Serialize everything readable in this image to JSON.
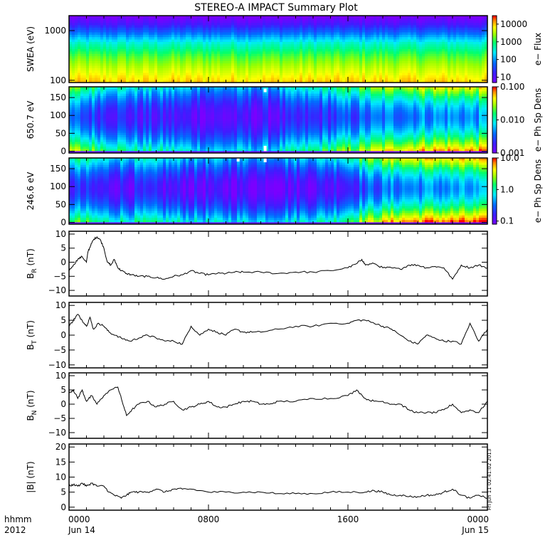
{
  "title": "STEREO-A IMPACT Summary Plot",
  "x_axis": {
    "corner_labels": [
      "hhmm",
      "2012"
    ],
    "ticks": [
      {
        "hour": 0,
        "time": "0000",
        "date": "Jun 14"
      },
      {
        "hour": 8,
        "time": "0800",
        "date": ""
      },
      {
        "hour": 16,
        "time": "1600",
        "date": ""
      },
      {
        "hour": 24,
        "time": "0000",
        "date": "Jun 15"
      }
    ],
    "range_hours": [
      0,
      24
    ],
    "minor_tick_step_hours": 1
  },
  "stamp_text": "Fri Jun 11 02:41:02 2013",
  "colors": {
    "line": "#000000",
    "axes": "#000000",
    "background": "#ffffff",
    "colormap": [
      "#ffffff",
      "#7a00ff",
      "#2a2aff",
      "#00ffff",
      "#00ff66",
      "#ffff00",
      "#ff8800",
      "#ff0000"
    ]
  },
  "chart_data": [
    {
      "type": "heatmap",
      "ylabel": "SWEA (eV)",
      "y_scale": "log",
      "ylim": [
        90,
        2000
      ],
      "yticks": [
        {
          "v": 100,
          "t": "100"
        },
        {
          "v": 1000,
          "t": "1000"
        }
      ],
      "colorbar": {
        "label": "e− Flux",
        "scale": "log",
        "range": [
          5,
          30000
        ],
        "ticks": [
          {
            "v": 10,
            "t": "10"
          },
          {
            "v": 100,
            "t": "100"
          },
          {
            "v": 1000,
            "t": "1000"
          },
          {
            "v": 10000,
            "t": "10000"
          }
        ]
      },
      "energy_profile": [
        {
          "e": 2000,
          "log_flux": 0.6
        },
        {
          "e": 1300,
          "log_flux": 1.2
        },
        {
          "e": 900,
          "log_flux": 1.8
        },
        {
          "e": 550,
          "log_flux": 2.6
        },
        {
          "e": 300,
          "log_flux": 3.2
        },
        {
          "e": 170,
          "log_flux": 3.6
        },
        {
          "e": 90,
          "log_flux": 4.0
        }
      ]
    },
    {
      "type": "heatmap",
      "ylabel": "650.7 eV",
      "ylim": [
        -5,
        180
      ],
      "yticks": [
        {
          "v": 0,
          "t": "0"
        },
        {
          "v": 50,
          "t": "50"
        },
        {
          "v": 100,
          "t": "100"
        },
        {
          "v": 150,
          "t": "150"
        }
      ],
      "colorbar": {
        "label": "e− Ph Sp Dens",
        "scale": "log",
        "range": [
          0.001,
          0.1
        ],
        "ticks": [
          {
            "v": 0.001,
            "t": "0.001"
          },
          {
            "v": 0.01,
            "t": "0.010"
          },
          {
            "v": 0.1,
            "t": "0.100"
          }
        ]
      },
      "edge_level": 0.5,
      "core_level": 0.05,
      "core_strength": [
        [
          0,
          0.3
        ],
        [
          2,
          0.55
        ],
        [
          4,
          0.75
        ],
        [
          6,
          0.8
        ],
        [
          8,
          0.95
        ],
        [
          11,
          0.95
        ],
        [
          13,
          0.8
        ],
        [
          15,
          0.55
        ],
        [
          17,
          0.35
        ],
        [
          19,
          0.12
        ],
        [
          21,
          0.05
        ],
        [
          24,
          0.05
        ]
      ],
      "gaps": [
        {
          "hour": 11.25,
          "angles": [
            175,
            165
          ]
        },
        {
          "hour": 11.25,
          "angles": [
            15,
            0
          ]
        }
      ]
    },
    {
      "type": "heatmap",
      "ylabel": "246.6 eV",
      "ylim": [
        -5,
        180
      ],
      "yticks": [
        {
          "v": 0,
          "t": "0"
        },
        {
          "v": 50,
          "t": "50"
        },
        {
          "v": 100,
          "t": "100"
        },
        {
          "v": 150,
          "t": "150"
        }
      ],
      "colorbar": {
        "label": "e− Ph Sp Dens",
        "scale": "log",
        "range": [
          0.08,
          10
        ],
        "ticks": [
          {
            "v": 0.1,
            "t": "0.1"
          },
          {
            "v": 1,
            "t": "1.0"
          },
          {
            "v": 10,
            "t": "10.0"
          }
        ]
      },
      "edge_level": 0.55,
      "core_level": 0.04,
      "core_strength": [
        [
          0,
          0.55
        ],
        [
          2,
          0.8
        ],
        [
          4,
          0.8
        ],
        [
          6,
          0.85
        ],
        [
          8,
          0.95
        ],
        [
          11,
          0.95
        ],
        [
          13,
          0.9
        ],
        [
          15,
          0.8
        ],
        [
          17,
          0.4
        ],
        [
          19,
          0.12
        ],
        [
          21,
          0.06
        ],
        [
          24,
          0.06
        ]
      ],
      "gaps": [
        {
          "hour": 9.7,
          "angles": [
            180,
            170
          ]
        },
        {
          "hour": 11.25,
          "angles": [
            180,
            168
          ]
        }
      ]
    },
    {
      "type": "line",
      "ylabel": "B",
      "ylabel_sub": "R",
      "ylabel_unit": "(nT)",
      "ylim": [
        -12,
        11
      ],
      "yticks": [
        {
          "v": -10,
          "t": "−10"
        },
        {
          "v": -5,
          "t": "−5"
        },
        {
          "v": 0,
          "t": "0"
        },
        {
          "v": 5,
          "t": "5"
        },
        {
          "v": 10,
          "t": "10"
        }
      ],
      "x": [
        0,
        0.25,
        0.5,
        0.75,
        1.0,
        1.1,
        1.25,
        1.4,
        1.6,
        1.8,
        2.0,
        2.2,
        2.4,
        2.6,
        2.8,
        3.0,
        3.3,
        3.6,
        4.0,
        4.5,
        5.0,
        5.5,
        6.0,
        6.5,
        7.0,
        7.5,
        8.0,
        8.5,
        9.0,
        9.5,
        10.0,
        11.0,
        12.0,
        13.0,
        14.0,
        15.0,
        16.0,
        16.5,
        16.8,
        17.0,
        17.5,
        18.0,
        18.5,
        19.0,
        19.5,
        20.0,
        20.5,
        21.0,
        21.5,
        22.0,
        22.5,
        23.0,
        23.5,
        24.0
      ],
      "y": [
        -3,
        -1,
        1,
        2,
        0,
        4,
        6,
        8,
        9,
        8,
        5,
        0,
        -1,
        1,
        -2,
        -3,
        -4,
        -4.5,
        -5,
        -5,
        -5.5,
        -6,
        -5,
        -4.5,
        -3,
        -4,
        -4.5,
        -4,
        -4,
        -3.5,
        -3.5,
        -3.5,
        -4,
        -3.5,
        -3.5,
        -3,
        -2,
        -0.5,
        1,
        -1,
        -0.5,
        -2,
        -2,
        -2.5,
        -1,
        -1,
        -2,
        -1.5,
        -2,
        -6,
        -1,
        -2,
        -1,
        -2
      ]
    },
    {
      "type": "line",
      "ylabel": "B",
      "ylabel_sub": "T",
      "ylabel_unit": "(nT)",
      "ylim": [
        -11,
        11
      ],
      "yticks": [
        {
          "v": -10,
          "t": "−10"
        },
        {
          "v": -5,
          "t": "−5"
        },
        {
          "v": 0,
          "t": "0"
        },
        {
          "v": 5,
          "t": "5"
        },
        {
          "v": 10,
          "t": "10"
        }
      ],
      "x": [
        0,
        0.25,
        0.5,
        0.75,
        1.0,
        1.2,
        1.4,
        1.7,
        2.0,
        2.3,
        2.6,
        3.0,
        3.5,
        4.0,
        4.5,
        5.0,
        5.5,
        6.0,
        6.5,
        7.0,
        7.5,
        8.0,
        8.5,
        9.0,
        9.5,
        10.0,
        10.5,
        11.0,
        12.0,
        13.0,
        14.0,
        15.0,
        16.0,
        16.5,
        17.0,
        17.5,
        18.0,
        18.5,
        19.0,
        19.5,
        20.0,
        20.5,
        21.0,
        21.5,
        22.0,
        22.5,
        23.0,
        23.5,
        24.0
      ],
      "y": [
        3,
        5,
        7,
        5,
        3,
        6,
        2,
        4,
        3,
        1,
        0,
        -1,
        -2,
        -1,
        0,
        -1,
        -2,
        -2,
        -3,
        3,
        0,
        2,
        1,
        0,
        2,
        1,
        1,
        1,
        2,
        3,
        3,
        4,
        4,
        5,
        5,
        4,
        3,
        2,
        0,
        -2,
        -3,
        0,
        -1,
        -2,
        -2,
        -3,
        4,
        -2,
        2
      ]
    },
    {
      "type": "line",
      "ylabel": "B",
      "ylabel_sub": "N",
      "ylabel_unit": "(nT)",
      "ylim": [
        -12,
        11
      ],
      "yticks": [
        {
          "v": -10,
          "t": "−10"
        },
        {
          "v": -5,
          "t": "−5"
        },
        {
          "v": 0,
          "t": "0"
        },
        {
          "v": 5,
          "t": "5"
        },
        {
          "v": 10,
          "t": "10"
        }
      ],
      "x": [
        0,
        0.25,
        0.5,
        0.75,
        1.0,
        1.3,
        1.6,
        2.0,
        2.4,
        2.8,
        3.0,
        3.3,
        3.6,
        4.0,
        4.5,
        5.0,
        5.5,
        6.0,
        6.5,
        7.0,
        7.5,
        8.0,
        8.5,
        9.0,
        9.5,
        10.0,
        10.5,
        11.0,
        11.5,
        12.0,
        13.0,
        14.0,
        15.0,
        16.0,
        16.5,
        17.0,
        17.5,
        18.0,
        18.5,
        19.0,
        19.5,
        20.0,
        20.5,
        21.0,
        21.5,
        22.0,
        22.5,
        23.0,
        23.5,
        24.0
      ],
      "y": [
        4,
        5,
        2,
        5,
        1,
        3,
        0,
        3,
        5,
        6,
        2,
        -4,
        -2,
        0,
        1,
        -1,
        0,
        1,
        -2,
        -1,
        0,
        1,
        -1,
        -1,
        0,
        1,
        1,
        0,
        0,
        1,
        1,
        2,
        2,
        3,
        5,
        2,
        1,
        1,
        0,
        0,
        -2,
        -3,
        -3,
        -3,
        -2,
        0,
        -3,
        -2,
        -3,
        1
      ]
    },
    {
      "type": "line",
      "ylabel": "|B|",
      "ylabel_sub": "",
      "ylabel_unit": "(nT)",
      "ylim": [
        -1,
        21
      ],
      "yticks": [
        {
          "v": 0,
          "t": "0"
        },
        {
          "v": 5,
          "t": "5"
        },
        {
          "v": 10,
          "t": "10"
        },
        {
          "v": 15,
          "t": "15"
        },
        {
          "v": 20,
          "t": "20"
        }
      ],
      "x": [
        0,
        0.25,
        0.5,
        0.75,
        1.0,
        1.3,
        1.6,
        2.0,
        2.3,
        2.6,
        3.0,
        3.3,
        3.6,
        4.0,
        4.5,
        5.0,
        5.5,
        6.0,
        6.5,
        7.0,
        8.0,
        9.0,
        10.0,
        11.0,
        12.0,
        13.0,
        14.0,
        15.0,
        16.0,
        17.0,
        17.5,
        18.0,
        18.5,
        19.0,
        19.5,
        20.0,
        20.5,
        21.0,
        21.5,
        22.0,
        22.5,
        23.0,
        23.5,
        24.0
      ],
      "y": [
        7,
        7.5,
        7,
        8,
        7,
        8,
        7,
        7,
        5,
        4,
        3,
        4,
        5,
        5,
        5,
        6,
        5,
        6,
        6,
        6,
        5,
        5,
        5,
        5,
        4.5,
        4.5,
        4.5,
        5,
        5,
        5,
        5.5,
        5,
        4,
        4,
        3.5,
        3.5,
        4,
        4,
        5,
        6,
        4,
        3,
        4,
        3
      ]
    }
  ]
}
